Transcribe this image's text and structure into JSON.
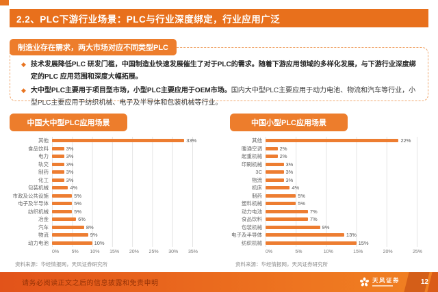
{
  "header": {
    "title": "2.2、PLC下游行业场景：PLC与行业深度绑定，行业应用广泛"
  },
  "section": {
    "tag_label": "制造业存在需求，两大市场对应不同类型PLC",
    "bullets": [
      {
        "bold": "技术发展降低PLC 研发门槛，中国制造业快速发展催生了对于PLC的需求。随着下游应用领域的多样化发展，与下游行业深度绑定的PLC 应用范围和深度大幅拓展。",
        "rest": ""
      },
      {
        "bold": "大中型PLC主要用于项目型市场，小型PLC主要应用于OEM市场。",
        "rest": "国内大中型PLC主要应用于动力电池、物流和汽车等行业，小型PLC主要应用于纺织机械、电子及半导体和包装机械等行业。"
      }
    ]
  },
  "chart_data": [
    {
      "type": "bar",
      "orientation": "horizontal",
      "title": "中国大中型PLC应用场景",
      "categories": [
        "其他",
        "食品饮料",
        "电力",
        "轨交",
        "制药",
        "化工",
        "包装机械",
        "市政及公共设施",
        "电子及半导体",
        "纺织机械",
        "冶金",
        "汽车",
        "物流",
        "动力电池"
      ],
      "values": [
        33,
        3,
        3,
        3,
        3,
        3,
        4,
        5,
        5,
        5,
        6,
        8,
        9,
        10
      ],
      "unit": "%",
      "xlim": [
        0,
        35
      ],
      "x_ticks": [
        "0%",
        "5%",
        "10%",
        "15%",
        "20%",
        "25%",
        "30%",
        "35%"
      ],
      "bar_color": "#ED7D31",
      "grid": "vertical",
      "legend": "none",
      "source": "资料来源：华经情报网，天风证券研究所"
    },
    {
      "type": "bar",
      "orientation": "horizontal",
      "title": "中国小型PLC应用场景",
      "categories": [
        "其他",
        "暖通空调",
        "起重机械",
        "印刷机械",
        "3C",
        "物流",
        "机床",
        "制药",
        "塑料机械",
        "动力电池",
        "食品饮料",
        "包装机械",
        "电子及半导体",
        "纺织机械"
      ],
      "values": [
        22,
        2,
        2,
        3,
        3,
        3,
        4,
        5,
        5,
        7,
        7,
        9,
        13,
        15
      ],
      "unit": "%",
      "xlim": [
        0,
        25
      ],
      "x_ticks": [
        "0%",
        "5%",
        "10%",
        "15%",
        "20%",
        "25%"
      ],
      "bar_color": "#ED7D31",
      "grid": "vertical",
      "legend": "none",
      "source": "资料来源：华经情报网，天风证券研究所"
    }
  ],
  "footer": {
    "disclaimer": "请务必阅读正文之后的信息披露和免责申明",
    "brand": "天风证券",
    "page_number": "12"
  },
  "colors": {
    "accent_orange": "#E87420",
    "tag_orange": "#ED7D2C",
    "bar_orange": "#ED7D31",
    "dashed_border": "#F0A468",
    "footer_gradient_left": "#E2531A",
    "footer_gradient_right": "#F08122"
  }
}
